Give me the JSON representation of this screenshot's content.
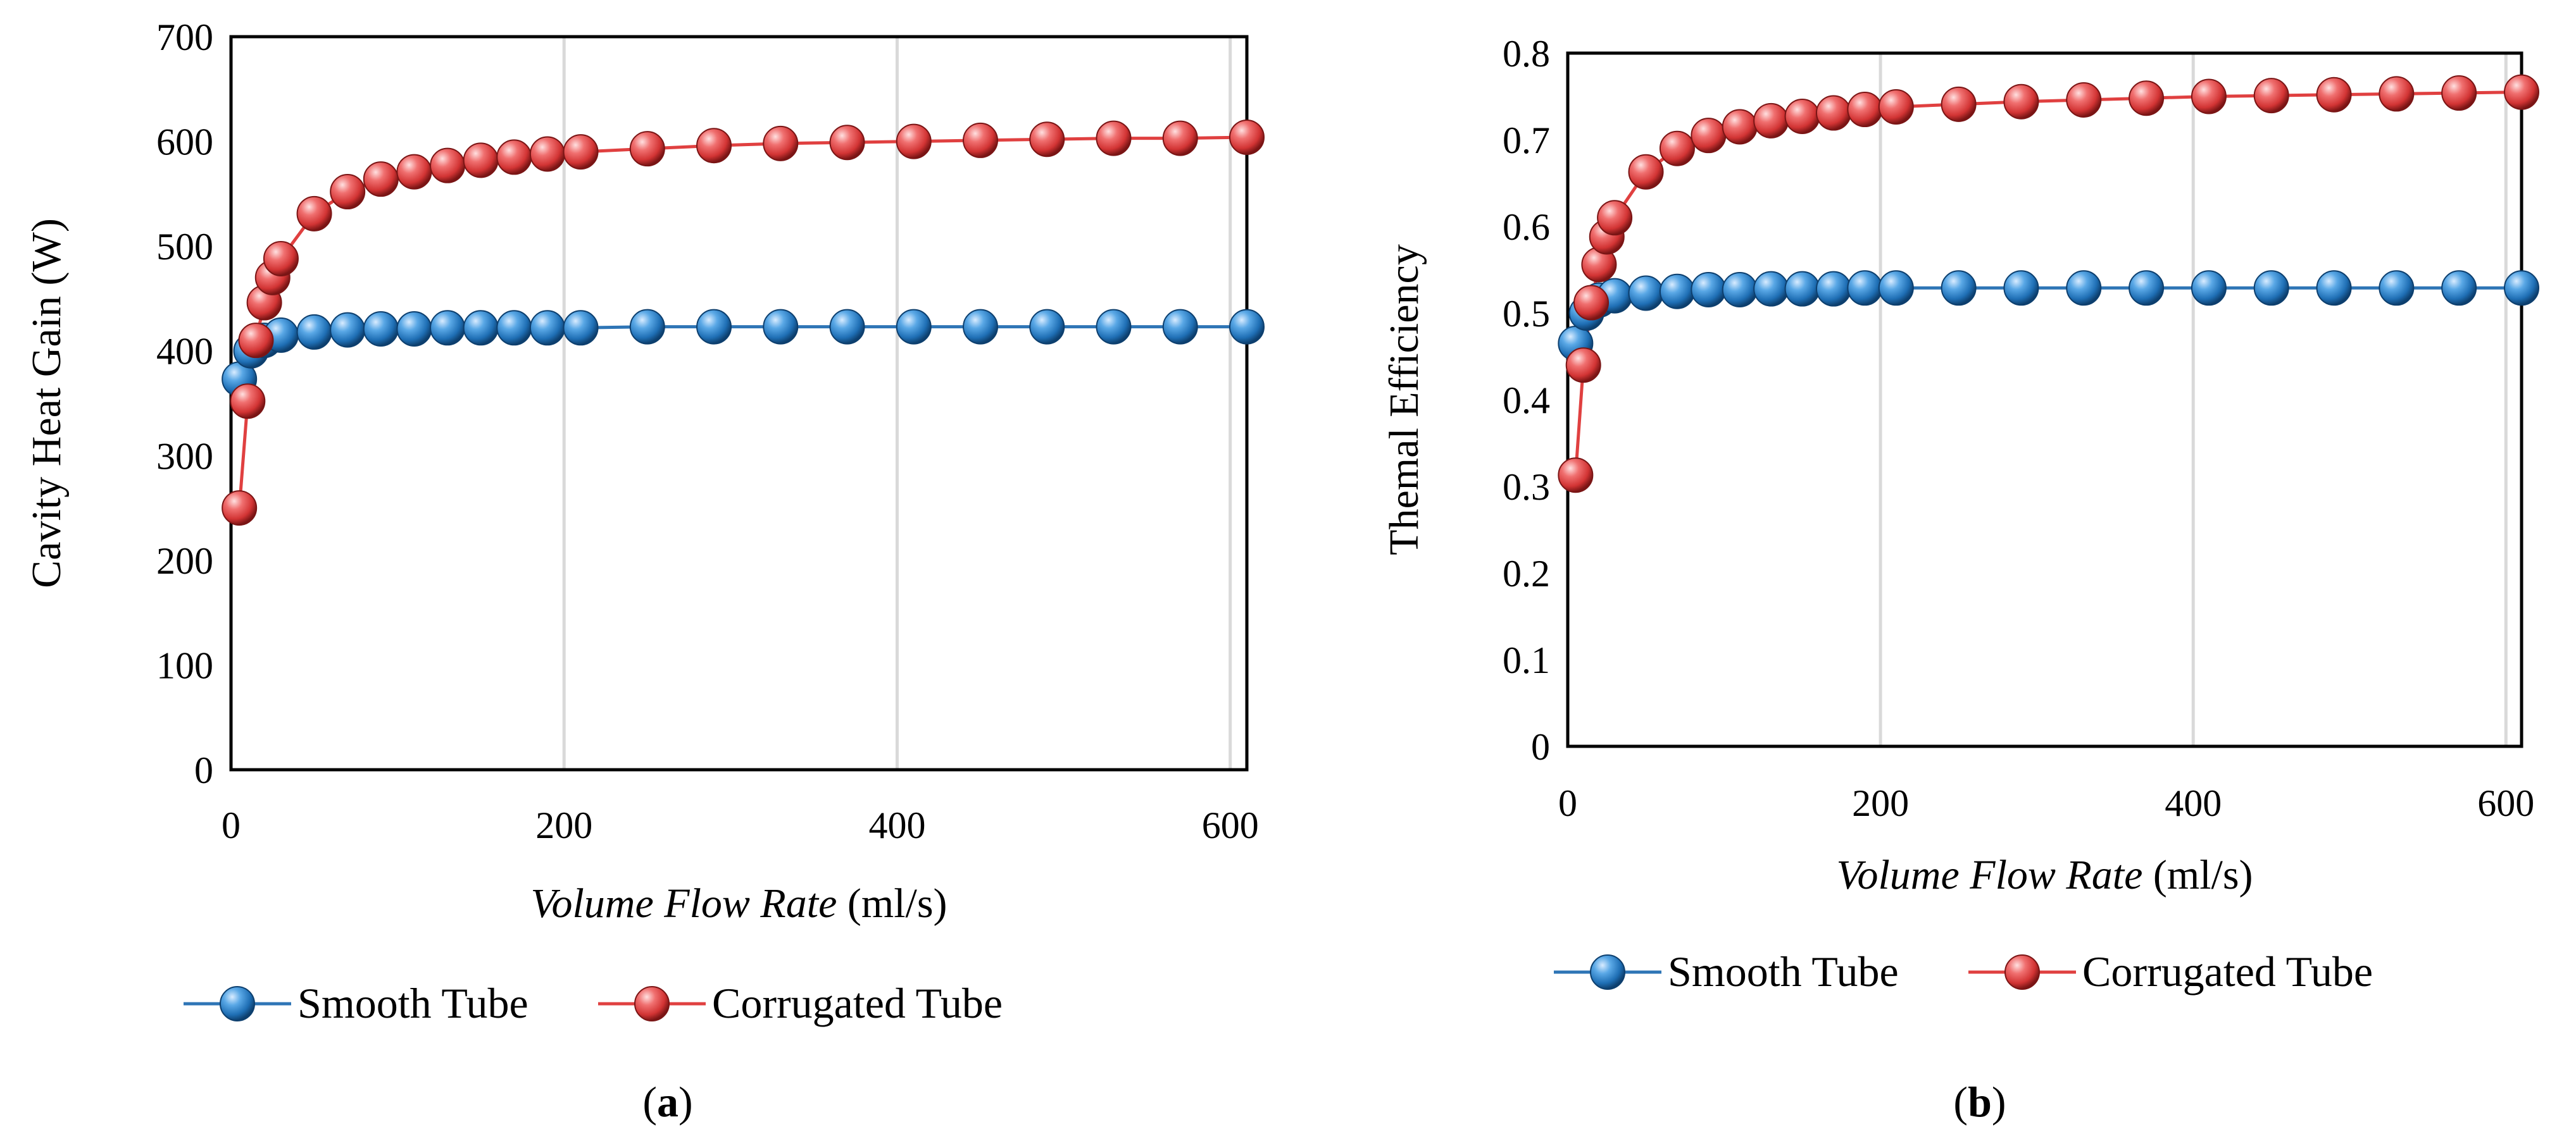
{
  "chart_data": [
    {
      "type": "line",
      "panel": "a",
      "caption_label": "a",
      "xlabel_italic": "Volume Flow Rate",
      "xlabel_unit": " (ml/s)",
      "ylabel": "Cavity Heat Gain (W)",
      "xlim": [
        0,
        610
      ],
      "ylim": [
        0,
        700
      ],
      "xticks": [
        0,
        200,
        400,
        600
      ],
      "yticks": [
        0,
        100,
        200,
        300,
        400,
        500,
        600,
        700
      ],
      "grid": "vertical",
      "legend": "bottom",
      "series": [
        {
          "name": "Smooth Tube",
          "color": "#2e75b6",
          "x": [
            5,
            12,
            20,
            30,
            50,
            70,
            90,
            110,
            130,
            150,
            170,
            190,
            210,
            250,
            290,
            330,
            370,
            410,
            450,
            490,
            530,
            570,
            610
          ],
          "y": [
            373,
            400,
            410,
            415,
            418,
            420,
            421,
            421,
            422,
            422,
            422,
            422,
            422,
            423,
            423,
            423,
            423,
            423,
            423,
            423,
            423,
            423,
            423
          ]
        },
        {
          "name": "Corrugated Tube",
          "color": "#e04040",
          "x": [
            5,
            10,
            15,
            20,
            25,
            30,
            50,
            70,
            90,
            110,
            130,
            150,
            170,
            190,
            210,
            250,
            290,
            330,
            370,
            410,
            450,
            490,
            530,
            570,
            610
          ],
          "y": [
            250,
            352,
            410,
            446,
            470,
            488,
            531,
            552,
            564,
            571,
            577,
            582,
            585,
            588,
            590,
            593,
            596,
            598,
            599,
            600,
            601,
            602,
            603,
            603,
            604
          ]
        }
      ]
    },
    {
      "type": "line",
      "panel": "b",
      "caption_label": "b",
      "xlabel_italic": "Volume Flow Rate",
      "xlabel_unit": " (ml/s)",
      "ylabel": "Themal Efficiency",
      "xlim": [
        0,
        610
      ],
      "ylim": [
        0,
        0.8
      ],
      "xticks": [
        0,
        200,
        400,
        600
      ],
      "yticks": [
        0,
        0.1,
        0.2,
        0.3,
        0.4,
        0.5,
        0.6,
        0.7,
        0.8
      ],
      "grid": "vertical",
      "legend": "bottom",
      "series": [
        {
          "name": "Smooth Tube",
          "color": "#2e75b6",
          "x": [
            5,
            12,
            20,
            30,
            50,
            70,
            90,
            110,
            130,
            150,
            170,
            190,
            210,
            250,
            290,
            330,
            370,
            410,
            450,
            490,
            530,
            570,
            610
          ],
          "y": [
            0.465,
            0.5,
            0.515,
            0.52,
            0.523,
            0.525,
            0.527,
            0.527,
            0.528,
            0.528,
            0.528,
            0.529,
            0.529,
            0.529,
            0.529,
            0.529,
            0.529,
            0.529,
            0.529,
            0.529,
            0.529,
            0.529,
            0.529
          ]
        },
        {
          "name": "Corrugated Tube",
          "color": "#e04040",
          "x": [
            5,
            10,
            15,
            20,
            25,
            30,
            50,
            70,
            90,
            110,
            130,
            150,
            170,
            190,
            210,
            250,
            290,
            330,
            370,
            410,
            450,
            490,
            530,
            570,
            610
          ],
          "y": [
            0.313,
            0.44,
            0.512,
            0.556,
            0.588,
            0.61,
            0.663,
            0.69,
            0.705,
            0.715,
            0.722,
            0.727,
            0.731,
            0.735,
            0.738,
            0.741,
            0.744,
            0.746,
            0.748,
            0.75,
            0.751,
            0.752,
            0.753,
            0.754,
            0.755
          ]
        }
      ]
    }
  ]
}
